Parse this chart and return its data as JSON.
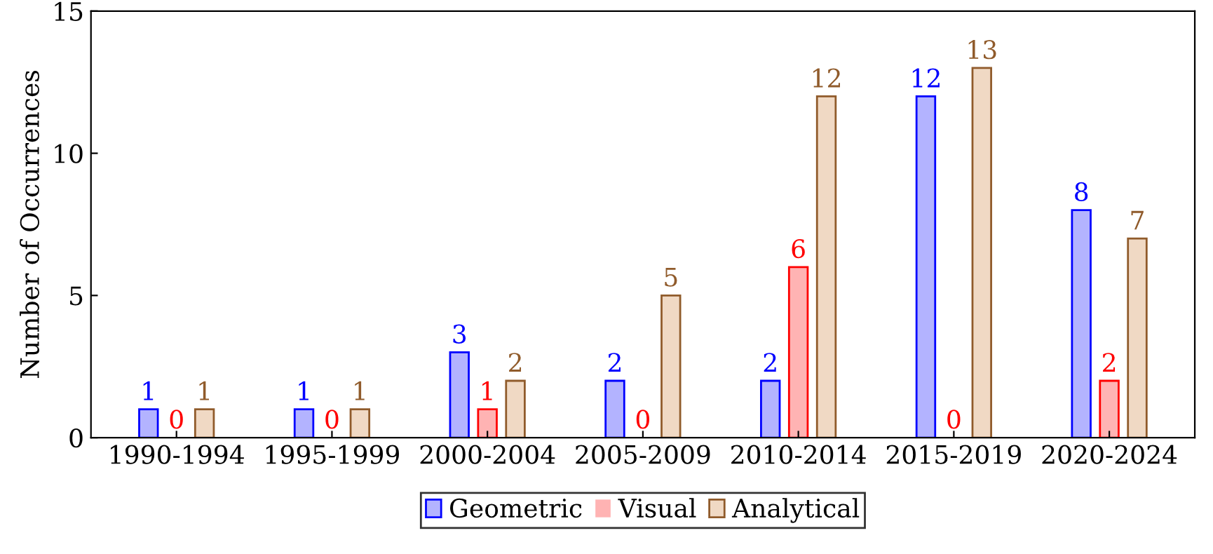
{
  "chart_data": {
    "type": "bar",
    "ylabel": "Number of Occurrences",
    "categories": [
      "1990-1994",
      "1995-1999",
      "2000-2004",
      "2005-2009",
      "2010-2014",
      "2015-2019",
      "2020-2024"
    ],
    "series": [
      {
        "name": "Geometric",
        "color": "#b3b3ff",
        "values": [
          1,
          1,
          3,
          2,
          2,
          12,
          8
        ]
      },
      {
        "name": "Visual",
        "color": "#ffb3b3",
        "values": [
          0,
          0,
          1,
          0,
          6,
          0,
          2
        ]
      },
      {
        "name": "Analytical",
        "color": "#f0d9c4",
        "values": [
          1,
          1,
          2,
          5,
          12,
          13,
          7
        ]
      }
    ],
    "ylim": [
      0,
      15
    ],
    "yticks": [
      0,
      5,
      10,
      15
    ],
    "data_labels": true,
    "grid": false,
    "legend": "bottom"
  }
}
